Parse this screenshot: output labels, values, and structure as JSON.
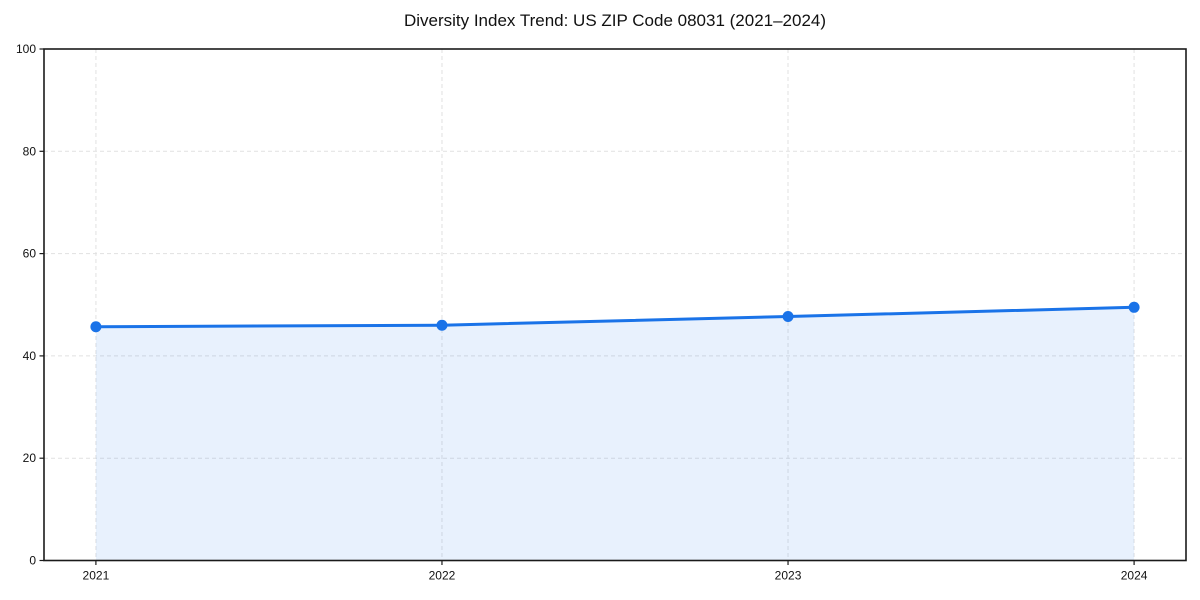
{
  "page": {
    "background_color": "#ffffff"
  },
  "chart_data": {
    "type": "area",
    "title": "Diversity Index Trend: US ZIP Code 08031 (2021–2024)",
    "x": [
      2021,
      2022,
      2023,
      2024
    ],
    "x_tick_labels": [
      "2021",
      "2022",
      "2023",
      "2024"
    ],
    "series": [
      {
        "name": "Diversity Index",
        "values": [
          45.7,
          46.0,
          47.7,
          49.5
        ]
      }
    ],
    "xlabel": "",
    "ylabel": "",
    "xlim": [
      2020.85,
      2024.15
    ],
    "ylim": [
      0,
      100
    ],
    "yticks": [
      0,
      20,
      40,
      60,
      80,
      100
    ],
    "grid": "dashed",
    "legend": "none",
    "line_color": "#1a73e8",
    "marker_color": "#1a73e8",
    "fill_color": "rgba(26,115,232,0.10)",
    "gridline_color": "#e1e1e1",
    "axis_color": "#1a1a1a",
    "text_color": "#111111"
  }
}
